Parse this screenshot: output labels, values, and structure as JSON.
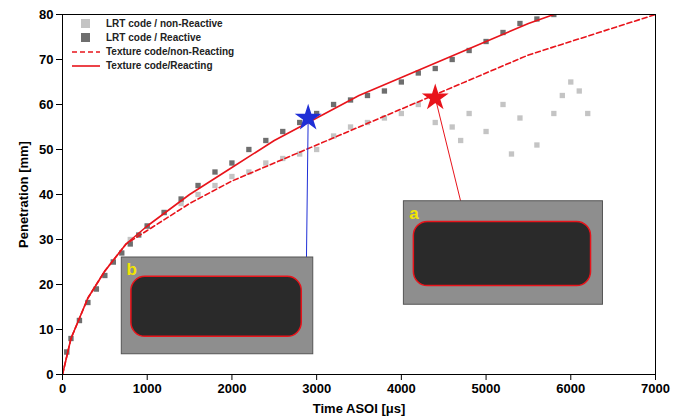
{
  "chart_data": {
    "type": "line",
    "x_label": "Time ASOI [μs]",
    "y_label": "Penetration [mm]",
    "xlim": [
      0,
      7000
    ],
    "xticks": [
      0,
      1000,
      2000,
      3000,
      4000,
      5000,
      6000,
      7000
    ],
    "ylim": [
      0,
      80
    ],
    "yticks": [
      0,
      10,
      20,
      30,
      40,
      50,
      60,
      70,
      80
    ],
    "legend": "top-left",
    "series": [
      {
        "name": "LRT code / non-Reactive",
        "type": "scatter",
        "marker": "square",
        "color": "#c4c4c4",
        "x": [
          50,
          200,
          400,
          600,
          800,
          1000,
          1200,
          1400,
          1600,
          1800,
          2000,
          2200,
          2400,
          2600,
          2800,
          3000,
          3200,
          3400,
          3600,
          3800,
          4000,
          4200,
          4400,
          4600,
          4700,
          4800,
          5000,
          5200,
          5300,
          5400,
          5600,
          5800,
          5900,
          6000,
          6100,
          6200
        ],
        "values": [
          5,
          12,
          19,
          25,
          30,
          33,
          36,
          38,
          40,
          42,
          44,
          45,
          47,
          48,
          49,
          50,
          53,
          55,
          56,
          57,
          58,
          60,
          56,
          55,
          52,
          58,
          54,
          60,
          49,
          57,
          51,
          58,
          62,
          65,
          63,
          58
        ]
      },
      {
        "name": "LRT code / Reactive",
        "type": "scatter",
        "marker": "square",
        "color": "#6e6e6e",
        "x": [
          50,
          100,
          200,
          300,
          400,
          500,
          600,
          700,
          800,
          900,
          1000,
          1200,
          1400,
          1600,
          1800,
          2000,
          2200,
          2400,
          2600,
          2800,
          3000,
          3200,
          3400,
          3600,
          3800,
          4000,
          4200,
          4400,
          4600,
          4800,
          5000,
          5200,
          5400,
          5600,
          5800
        ],
        "values": [
          5,
          8,
          12,
          16,
          19,
          22,
          25,
          27,
          29,
          31,
          33,
          36,
          39,
          42,
          45,
          47,
          50,
          52,
          54,
          56,
          58,
          60,
          61,
          62,
          63,
          65,
          67,
          68,
          70,
          72,
          74,
          76,
          78,
          79,
          80
        ]
      },
      {
        "name": "Texture code/non-Reacting",
        "type": "line",
        "line_style": "dashed",
        "color": "#e8141b",
        "x": [
          0,
          100,
          300,
          500,
          750,
          1000,
          1500,
          2000,
          2500,
          3000,
          3500,
          4000,
          4500,
          5000,
          5500,
          6000,
          6500,
          7000
        ],
        "values": [
          0,
          8,
          17,
          23,
          29,
          32,
          38,
          43,
          47,
          51,
          55,
          59,
          63,
          67,
          71,
          74,
          77,
          80
        ]
      },
      {
        "name": "Texture code/Reacting",
        "type": "line",
        "line_style": "solid",
        "color": "#e8141b",
        "x": [
          0,
          100,
          300,
          500,
          750,
          1000,
          1500,
          2000,
          2500,
          3000,
          3500,
          4000,
          4500,
          5000,
          5500,
          5800
        ],
        "values": [
          0,
          8,
          17,
          23,
          29,
          33,
          40,
          46,
          52,
          57,
          62,
          66,
          70,
          74,
          78,
          80
        ]
      }
    ],
    "annotations": [
      {
        "text": "b",
        "x": 2900,
        "y": 57,
        "marker": "star",
        "color": "#1f2fd6"
      },
      {
        "text": "a",
        "x": 4400,
        "y": 61.5,
        "marker": "star",
        "color": "#e8141b"
      }
    ]
  }
}
